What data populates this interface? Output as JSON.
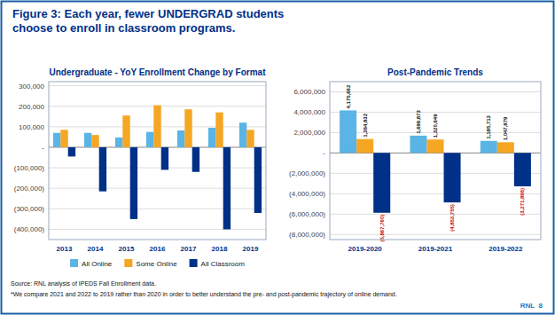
{
  "title": "Figure 3: Each year, fewer UNDERGRAD students\nchoose to enroll in classroom programs.",
  "annotations": [
    "Source: RNL analysis of IPEDS Fall Enrollment data.",
    "*We compare 2021 and 2022 to 2019 rather than 2020 in order to better understand the pre- and post-pandemic trajectory of online demand.",
    "RNL  8"
  ],
  "chart_data": [
    {
      "type": "bar",
      "title": "Undergraduate - YoY Enrollment Change by Format",
      "categories": [
        "2013",
        "2014",
        "2015",
        "2016",
        "2017",
        "2018",
        "2019"
      ],
      "series": [
        {
          "name": "All Online",
          "color": "#5ab4e5",
          "values": [
            70000,
            70000,
            48000,
            75000,
            82000,
            95000,
            120000
          ]
        },
        {
          "name": "Some Online",
          "color": "#f5a623",
          "values": [
            85000,
            60000,
            155000,
            205000,
            185000,
            170000,
            85000
          ]
        },
        {
          "name": "All Classroom",
          "color": "#003087",
          "values": [
            -45000,
            -215000,
            -350000,
            -110000,
            -120000,
            -400000,
            -320000
          ]
        }
      ],
      "ylim": [
        -450000,
        320000
      ],
      "yticks": [
        {
          "value": -400000,
          "label": "(400,000)"
        },
        {
          "value": -300000,
          "label": "(300,000)"
        },
        {
          "value": -200000,
          "label": "(200,000)"
        },
        {
          "value": -100000,
          "label": "(100,000)"
        },
        {
          "value": 0,
          "label": "-"
        },
        {
          "value": 100000,
          "label": "100,000"
        },
        {
          "value": 200000,
          "label": "200,000"
        },
        {
          "value": 300000,
          "label": "300,000"
        }
      ],
      "grid": true,
      "legend": "bottom"
    },
    {
      "type": "bar",
      "title": "Post-Pandemic Trends",
      "categories": [
        "2019-2020",
        "2019-2021",
        "2019-2022"
      ],
      "series": [
        {
          "color": "#5ab4e5",
          "values": [
            4175662,
            1699873,
            1185713
          ],
          "value_labels": [
            "4,175,662",
            "1,699,873",
            "1,185,713"
          ]
        },
        {
          "color": "#f5a623",
          "values": [
            1364832,
            1320649,
            1047879
          ],
          "value_labels": [
            "1,364,832",
            "1,320,649",
            "1,047,879"
          ]
        },
        {
          "color": "#003087",
          "values": [
            -5867760,
            -4853755,
            -3271896
          ],
          "value_labels": [
            "(5,867,760)",
            "(4,853,755)",
            "(3,271,896)"
          ]
        }
      ],
      "ylim": [
        -8500000,
        7000000
      ],
      "yticks": [
        {
          "value": -8000000,
          "label": "(8,000,000)"
        },
        {
          "value": -6000000,
          "label": "(6,000,000)"
        },
        {
          "value": -4000000,
          "label": "(4,000,000)"
        },
        {
          "value": -2000000,
          "label": "(2,000,000)"
        },
        {
          "value": 0,
          "label": "-"
        },
        {
          "value": 2000000,
          "label": "2,000,000"
        },
        {
          "value": 4000000,
          "label": "4,000,000"
        },
        {
          "value": 6000000,
          "label": "6,000,000"
        }
      ],
      "grid": true,
      "data_labels": true
    }
  ]
}
